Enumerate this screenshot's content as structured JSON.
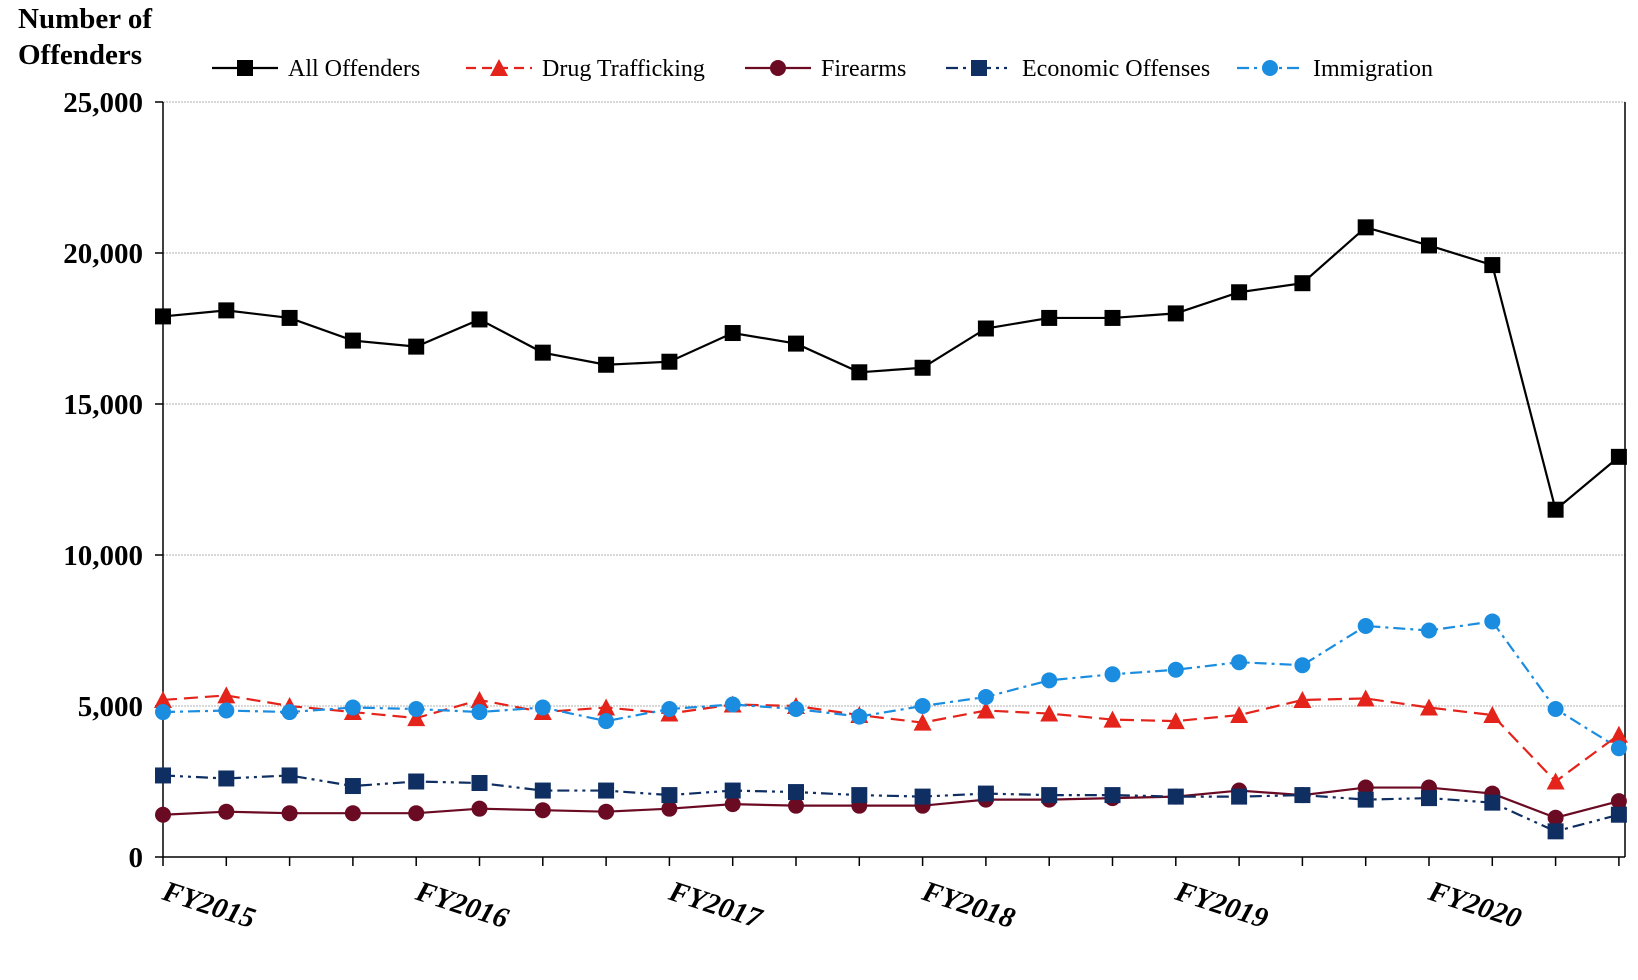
{
  "chart_data": {
    "type": "line",
    "ylabel": "Number of Offenders",
    "ylim": [
      0,
      25000
    ],
    "yticks": [
      "0",
      "5,000",
      "10,000",
      "15,000",
      "20,000",
      "25,000"
    ],
    "ytick_values": [
      0,
      5000,
      10000,
      15000,
      20000,
      25000
    ],
    "x_tick_labels": [
      {
        "label": "FY2015",
        "index": 0
      },
      {
        "label": "FY2016",
        "index": 4
      },
      {
        "label": "FY2017",
        "index": 8
      },
      {
        "label": "FY2018",
        "index": 12
      },
      {
        "label": "FY2019",
        "index": 16
      },
      {
        "label": "FY2020",
        "index": 20
      }
    ],
    "grid": "horizontal",
    "legend_position": "top",
    "series": [
      {
        "name": "All Offenders",
        "color": "#000000",
        "marker": "square",
        "dash": "solid",
        "values": [
          17900,
          18100,
          17850,
          17100,
          16900,
          17800,
          16700,
          16300,
          16400,
          17350,
          17000,
          16050,
          16200,
          17500,
          17850,
          17850,
          18000,
          18700,
          19000,
          20850,
          20250,
          19600,
          11500,
          13250
        ]
      },
      {
        "name": "Drug Trafficking",
        "color": "#e4231b",
        "marker": "triangle",
        "dash": "long-dash",
        "values": [
          5200,
          5350,
          5000,
          4800,
          4600,
          5200,
          4800,
          4950,
          4750,
          5050,
          5000,
          4700,
          4450,
          4850,
          4750,
          4550,
          4500,
          4700,
          5200,
          5250,
          4950,
          4700,
          2500,
          4050
        ]
      },
      {
        "name": "Firearms",
        "color": "#6b0a23",
        "marker": "circle",
        "dash": "solid",
        "values": [
          1400,
          1500,
          1450,
          1450,
          1450,
          1600,
          1550,
          1500,
          1600,
          1750,
          1700,
          1700,
          1700,
          1900,
          1900,
          1950,
          2000,
          2200,
          2050,
          2300,
          2300,
          2100,
          1300,
          1850
        ]
      },
      {
        "name": "Economic Offenses",
        "color": "#0f2f63",
        "marker": "square",
        "dash": "dash-dot-dot",
        "values": [
          2700,
          2600,
          2700,
          2350,
          2500,
          2450,
          2200,
          2200,
          2050,
          2200,
          2150,
          2050,
          2000,
          2100,
          2050,
          2050,
          2000,
          2000,
          2050,
          1900,
          1950,
          1800,
          850,
          1400
        ]
      },
      {
        "name": "Immigration",
        "color": "#1a8de0",
        "marker": "circle",
        "dash": "dash-dot",
        "values": [
          4800,
          4850,
          4800,
          4950,
          4900,
          4800,
          4950,
          4500,
          4900,
          5050,
          4900,
          4650,
          5000,
          5300,
          5850,
          6050,
          6200,
          6450,
          6350,
          7650,
          7500,
          7800,
          4900,
          3600
        ]
      }
    ]
  }
}
